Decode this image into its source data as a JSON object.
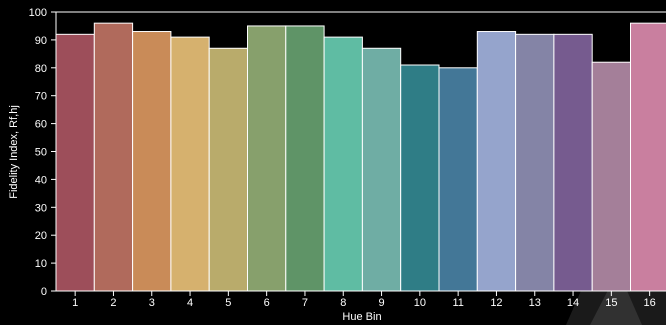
{
  "chart_data": {
    "type": "bar",
    "title": "",
    "xlabel": "Hue Bin",
    "ylabel": "Fidelity Index, Rf,hj",
    "ylim": [
      0,
      100
    ],
    "yticks": [
      0,
      10,
      20,
      30,
      40,
      50,
      60,
      70,
      80,
      90,
      100
    ],
    "grid": false,
    "categories": [
      "1",
      "2",
      "3",
      "4",
      "5",
      "6",
      "7",
      "8",
      "9",
      "10",
      "11",
      "12",
      "13",
      "14",
      "15",
      "16"
    ],
    "values": [
      92,
      96,
      93,
      91,
      87,
      95,
      95,
      91,
      87,
      81,
      80,
      93,
      92,
      92,
      82,
      96
    ],
    "colors": [
      "#9d4e5a",
      "#b06a5c",
      "#c98b58",
      "#d6b16e",
      "#b9ab6b",
      "#87a06c",
      "#5f9467",
      "#5fbca3",
      "#6fada4",
      "#2f7d86",
      "#437797",
      "#95a4cc",
      "#8484a6",
      "#765b8f",
      "#a47f99",
      "#c97f9f"
    ],
    "bar_outline": "#ffffff",
    "background": "#000000",
    "axis_color": "#ffffff"
  }
}
